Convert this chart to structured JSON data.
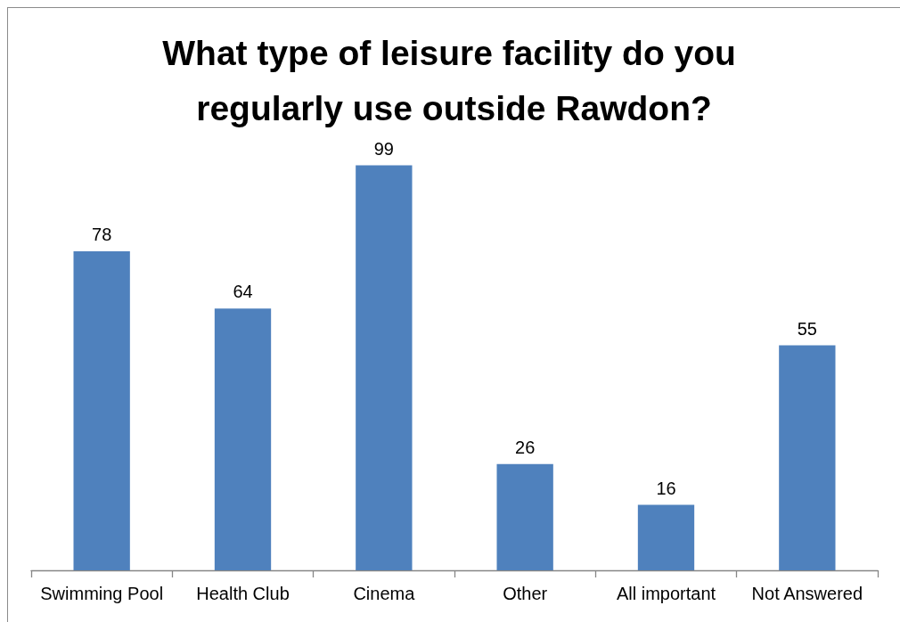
{
  "chart_data": {
    "type": "bar",
    "title": "What type of leisure facility do you regularly use outside Rawdon?",
    "categories": [
      "Swimming Pool",
      "Health Club",
      "Cinema",
      "Other",
      "All important",
      "Not Answered"
    ],
    "values": [
      78,
      64,
      99,
      26,
      16,
      55
    ],
    "color": "#4f81bd",
    "data_labels": true,
    "tick_labels": "x"
  }
}
